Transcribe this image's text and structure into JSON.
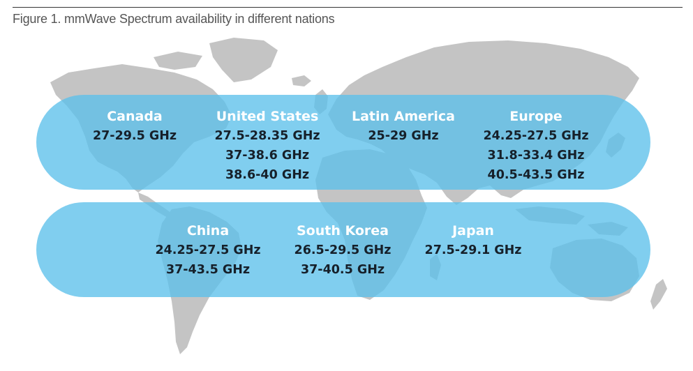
{
  "caption": "Figure 1. mmWave Spectrum availability in different nations",
  "colors": {
    "band": "#5cc0ea",
    "map_land": "#c4c4c4",
    "region_name": "#ffffff",
    "frequency_text": "#16202a"
  },
  "bands": [
    {
      "regions": [
        {
          "name": "Canada",
          "ranges": [
            "27-29.5 GHz"
          ]
        },
        {
          "name": "United States",
          "ranges": [
            "27.5-28.35 GHz",
            "37-38.6 GHz",
            "38.6-40 GHz"
          ]
        },
        {
          "name": "Latin America",
          "ranges": [
            "25-29 GHz"
          ]
        },
        {
          "name": "Europe",
          "ranges": [
            "24.25-27.5 GHz",
            "31.8-33.4 GHz",
            "40.5-43.5 GHz"
          ]
        }
      ]
    },
    {
      "regions": [
        {
          "name": "China",
          "ranges": [
            "24.25-27.5 GHz",
            "37-43.5 GHz"
          ]
        },
        {
          "name": "South Korea",
          "ranges": [
            "26.5-29.5 GHz",
            "37-40.5 GHz"
          ]
        },
        {
          "name": "Japan",
          "ranges": [
            "27.5-29.1 GHz"
          ]
        }
      ]
    }
  ]
}
